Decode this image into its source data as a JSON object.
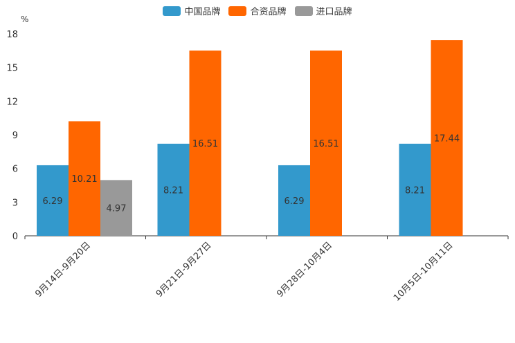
{
  "chart_data": {
    "type": "bar",
    "title": "",
    "xlabel": "",
    "ylabel": "%",
    "ylim": [
      0,
      18
    ],
    "yticks": [
      0,
      3,
      6,
      9,
      12,
      15,
      18
    ],
    "categories": [
      "9月14日-9月20日",
      "9月21日-9月27日",
      "9月28日-10月4日",
      "10月5日-10月11日"
    ],
    "series": [
      {
        "name": "中国品牌",
        "color": "#3399cc",
        "values": [
          6.29,
          8.21,
          6.29,
          8.21
        ]
      },
      {
        "name": "合资品牌",
        "color": "#ff6600",
        "values": [
          10.21,
          16.51,
          16.51,
          17.44
        ]
      },
      {
        "name": "进口品牌",
        "color": "#999999",
        "values": [
          4.97,
          null,
          null,
          null
        ]
      }
    ],
    "legend_position": "top-center"
  }
}
